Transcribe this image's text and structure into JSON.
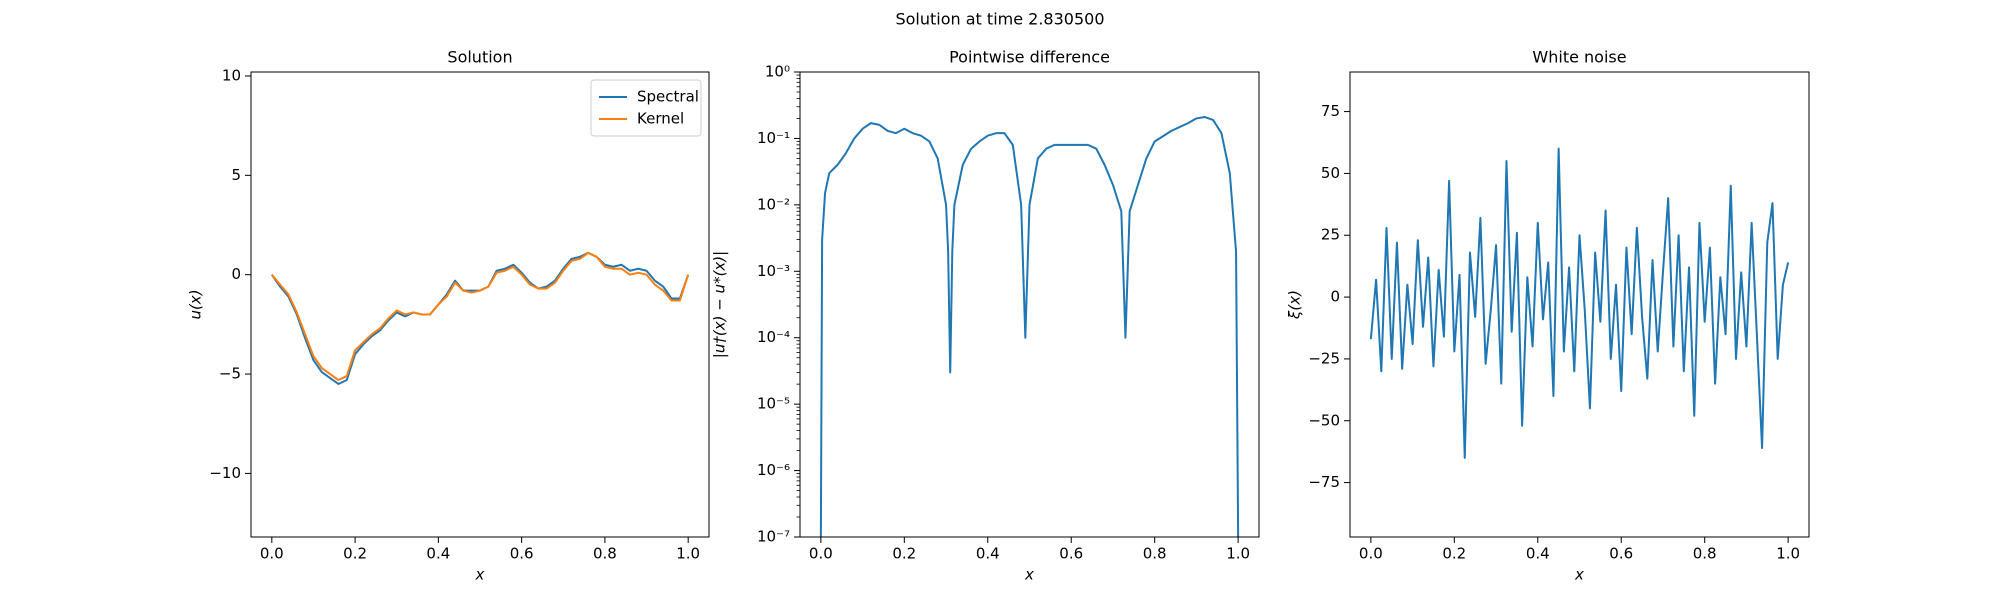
{
  "title": "Solution at time 2.830500",
  "chart_data": [
    {
      "type": "line",
      "title": "Solution",
      "xlabel": "x",
      "ylabel": "u(x)",
      "legend": "upper right",
      "xlim": [
        -0.05,
        1.05
      ],
      "ylim": [
        -13.2,
        10.2
      ],
      "xticks": [
        {
          "value": 0,
          "label": "0.0"
        },
        {
          "value": 0.2,
          "label": "0.2"
        },
        {
          "value": 0.4,
          "label": "0.4"
        },
        {
          "value": 0.6,
          "label": "0.6"
        },
        {
          "value": 0.8,
          "label": "0.8"
        },
        {
          "value": 1,
          "label": "1.0"
        }
      ],
      "yticks": [
        {
          "value": -10,
          "label": "−10"
        },
        {
          "value": -5,
          "label": "−5"
        },
        0,
        5,
        10
      ],
      "x": [
        0,
        0.02,
        0.04,
        0.06,
        0.08,
        0.1,
        0.12,
        0.14,
        0.16,
        0.18,
        0.2,
        0.22,
        0.24,
        0.26,
        0.28,
        0.3,
        0.32,
        0.34,
        0.36,
        0.38,
        0.4,
        0.42,
        0.44,
        0.46,
        0.48,
        0.5,
        0.52,
        0.54,
        0.56,
        0.58,
        0.6,
        0.62,
        0.64,
        0.66,
        0.68,
        0.7,
        0.72,
        0.74,
        0.76,
        0.78,
        0.8,
        0.82,
        0.84,
        0.86,
        0.88,
        0.9,
        0.92,
        0.94,
        0.96,
        0.98,
        1
      ],
      "series": [
        {
          "name": "Spectral",
          "color": "#1f77b4",
          "values": [
            0,
            -0.6,
            -1.1,
            -2.0,
            -3.2,
            -4.3,
            -4.9,
            -5.2,
            -5.5,
            -5.3,
            -4.0,
            -3.5,
            -3.1,
            -2.8,
            -2.3,
            -1.9,
            -2.1,
            -1.9,
            -2.0,
            -2.0,
            -1.5,
            -1.0,
            -0.3,
            -0.8,
            -0.8,
            -0.8,
            -0.6,
            0.2,
            0.3,
            0.5,
            0.1,
            -0.4,
            -0.7,
            -0.6,
            -0.3,
            0.3,
            0.8,
            0.9,
            1.1,
            0.9,
            0.5,
            0.4,
            0.5,
            0.2,
            0.3,
            0.2,
            -0.3,
            -0.6,
            -1.2,
            -1.2,
            0
          ]
        },
        {
          "name": "Kernel",
          "color": "#ff7f0e",
          "values": [
            0,
            -0.5,
            -1.0,
            -1.9,
            -3.0,
            -4.1,
            -4.7,
            -5.0,
            -5.3,
            -5.1,
            -3.8,
            -3.4,
            -3.0,
            -2.7,
            -2.2,
            -1.8,
            -2.0,
            -1.9,
            -2.0,
            -2.0,
            -1.5,
            -1.1,
            -0.4,
            -0.8,
            -0.9,
            -0.8,
            -0.6,
            0.1,
            0.2,
            0.4,
            0.0,
            -0.5,
            -0.7,
            -0.7,
            -0.4,
            0.2,
            0.7,
            0.8,
            1.1,
            0.9,
            0.4,
            0.3,
            0.3,
            0.0,
            0.1,
            0.0,
            -0.5,
            -0.8,
            -1.3,
            -1.3,
            0
          ]
        }
      ]
    },
    {
      "type": "line",
      "title": "Pointwise difference",
      "xlabel": "x",
      "ylabel": "|u†(x) − u*(x)|",
      "log_y": true,
      "xlim": [
        -0.05,
        1.05
      ],
      "ylim": [
        1e-07,
        1
      ],
      "xticks": [
        {
          "value": 0,
          "label": "0.0"
        },
        {
          "value": 0.2,
          "label": "0.2"
        },
        {
          "value": 0.4,
          "label": "0.4"
        },
        {
          "value": 0.6,
          "label": "0.6"
        },
        {
          "value": 0.8,
          "label": "0.8"
        },
        {
          "value": 1,
          "label": "1.0"
        }
      ],
      "yticks": [
        {
          "value": 1e-07,
          "label": "10⁻⁷"
        },
        {
          "value": 1e-06,
          "label": "10⁻⁶"
        },
        {
          "value": 1e-05,
          "label": "10⁻⁵"
        },
        {
          "value": 0.0001,
          "label": "10⁻⁴"
        },
        {
          "value": 0.001,
          "label": "10⁻³"
        },
        {
          "value": 0.01,
          "label": "10⁻²"
        },
        {
          "value": 0.1,
          "label": "10⁻¹"
        },
        {
          "value": 1,
          "label": "10⁰"
        }
      ],
      "x": [
        0,
        0.003,
        0.01,
        0.02,
        0.04,
        0.06,
        0.08,
        0.1,
        0.12,
        0.14,
        0.16,
        0.18,
        0.2,
        0.22,
        0.24,
        0.26,
        0.28,
        0.3,
        0.305,
        0.31,
        0.315,
        0.32,
        0.34,
        0.36,
        0.38,
        0.4,
        0.42,
        0.44,
        0.46,
        0.48,
        0.49,
        0.5,
        0.52,
        0.54,
        0.56,
        0.6,
        0.64,
        0.66,
        0.68,
        0.7,
        0.72,
        0.73,
        0.74,
        0.76,
        0.78,
        0.8,
        0.84,
        0.88,
        0.9,
        0.92,
        0.94,
        0.96,
        0.98,
        0.995,
        1
      ],
      "series": [
        {
          "color": "#1f77b4",
          "values": [
            1e-07,
            0.003,
            0.015,
            0.03,
            0.04,
            0.06,
            0.1,
            0.14,
            0.17,
            0.16,
            0.13,
            0.12,
            0.14,
            0.12,
            0.11,
            0.09,
            0.05,
            0.01,
            0.002,
            3e-05,
            0.002,
            0.01,
            0.04,
            0.07,
            0.09,
            0.11,
            0.12,
            0.12,
            0.08,
            0.01,
            0.0001,
            0.01,
            0.05,
            0.07,
            0.08,
            0.08,
            0.08,
            0.07,
            0.04,
            0.02,
            0.008,
            0.0001,
            0.008,
            0.02,
            0.05,
            0.09,
            0.13,
            0.17,
            0.2,
            0.21,
            0.19,
            0.12,
            0.03,
            0.002,
            1e-07
          ]
        }
      ]
    },
    {
      "type": "line",
      "title": "White noise",
      "xlabel": "x",
      "ylabel": "ξ(x)",
      "xlim": [
        -0.05,
        1.05
      ],
      "ylim": [
        -97,
        91
      ],
      "xticks": [
        {
          "value": 0,
          "label": "0.0"
        },
        {
          "value": 0.2,
          "label": "0.2"
        },
        {
          "value": 0.4,
          "label": "0.4"
        },
        {
          "value": 0.6,
          "label": "0.6"
        },
        {
          "value": 0.8,
          "label": "0.8"
        },
        {
          "value": 1,
          "label": "1.0"
        }
      ],
      "yticks": [
        {
          "value": -75,
          "label": "−75"
        },
        {
          "value": -50,
          "label": "−50"
        },
        {
          "value": -25,
          "label": "−25"
        },
        0,
        25,
        50,
        75
      ],
      "x": [
        0,
        0.0125,
        0.025,
        0.0375,
        0.05,
        0.0625,
        0.075,
        0.0875,
        0.1,
        0.1125,
        0.125,
        0.1375,
        0.15,
        0.1625,
        0.175,
        0.1875,
        0.2,
        0.2125,
        0.225,
        0.2375,
        0.25,
        0.2625,
        0.275,
        0.2875,
        0.3,
        0.3125,
        0.325,
        0.3375,
        0.35,
        0.3625,
        0.375,
        0.3875,
        0.4,
        0.4125,
        0.425,
        0.4375,
        0.45,
        0.4625,
        0.475,
        0.4875,
        0.5,
        0.5125,
        0.525,
        0.5375,
        0.55,
        0.5625,
        0.575,
        0.5875,
        0.6,
        0.6125,
        0.625,
        0.6375,
        0.65,
        0.6625,
        0.675,
        0.6875,
        0.7,
        0.7125,
        0.725,
        0.7375,
        0.75,
        0.7625,
        0.775,
        0.7875,
        0.8,
        0.8125,
        0.825,
        0.8375,
        0.85,
        0.8625,
        0.875,
        0.8875,
        0.9,
        0.9125,
        0.925,
        0.9375,
        0.95,
        0.9625,
        0.975,
        0.9875,
        1
      ],
      "series": [
        {
          "color": "#1f77b4",
          "values": [
            -17,
            7,
            -30,
            28,
            -25,
            22,
            -29,
            5,
            -19,
            23,
            -12,
            16,
            -28,
            11,
            -16,
            47,
            -22,
            9,
            -65,
            18,
            -8,
            32,
            -27,
            -5,
            21,
            -35,
            55,
            -14,
            26,
            -52,
            8,
            -20,
            30,
            -9,
            14,
            -40,
            60,
            -22,
            12,
            -30,
            25,
            -5,
            -45,
            18,
            -10,
            35,
            -25,
            5,
            -38,
            20,
            -15,
            28,
            -8,
            -33,
            15,
            -22,
            10,
            40,
            -20,
            25,
            -30,
            12,
            -48,
            30,
            -10,
            20,
            -35,
            8,
            -15,
            45,
            -25,
            10,
            -20,
            30,
            -15,
            -61,
            22,
            38,
            -25,
            5,
            14
          ]
        }
      ]
    }
  ]
}
